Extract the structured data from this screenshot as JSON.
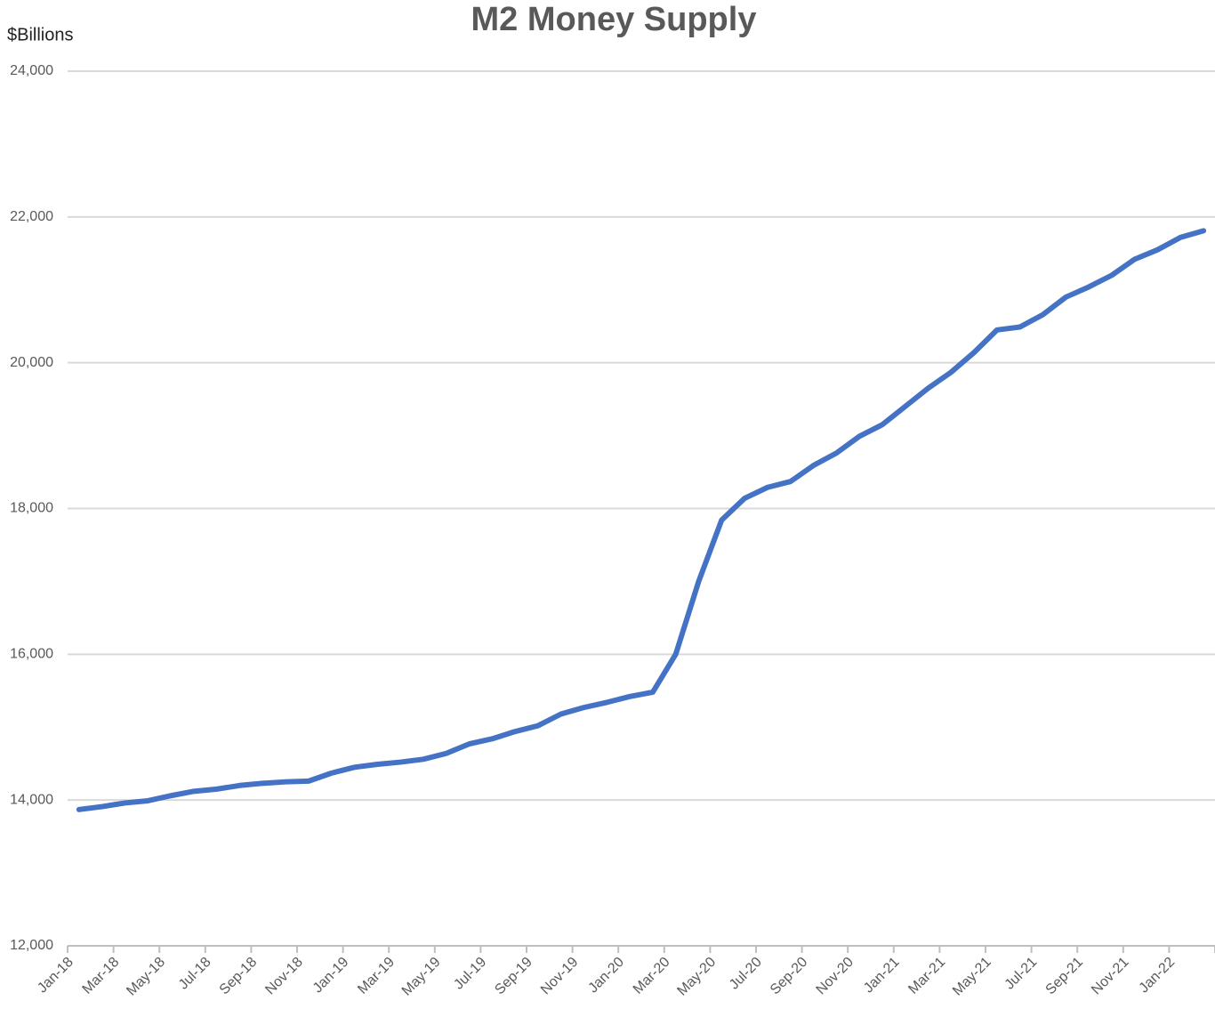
{
  "chart_data": {
    "type": "line",
    "title": "M2 Money Supply",
    "y_label": "$Billions",
    "categories": [
      "Jan-18",
      null,
      "Mar-18",
      null,
      "May-18",
      null,
      "Jul-18",
      null,
      "Sep-18",
      null,
      "Nov-18",
      null,
      "Jan-19",
      null,
      "Mar-19",
      null,
      "May-19",
      null,
      "Jul-19",
      null,
      "Sep-19",
      null,
      "Nov-19",
      null,
      "Jan-20",
      null,
      "Mar-20",
      null,
      "May-20",
      null,
      "Jul-20",
      null,
      "Sep-20",
      null,
      "Nov-20",
      null,
      "Jan-21",
      null,
      "Mar-21",
      null,
      "May-21",
      null,
      "Jul-21",
      null,
      "Sep-21",
      null,
      "Nov-21",
      null,
      "Jan-22",
      null
    ],
    "values": [
      13870,
      13910,
      13960,
      13990,
      14060,
      14120,
      14150,
      14200,
      14230,
      14250,
      14260,
      14370,
      14450,
      14490,
      14520,
      14560,
      14640,
      14770,
      14840,
      14940,
      15020,
      15180,
      15270,
      15340,
      15420,
      15480,
      16000,
      17000,
      17840,
      18140,
      18290,
      18370,
      18590,
      18760,
      18990,
      19150,
      19400,
      19650,
      19870,
      20140,
      20450,
      20490,
      20660,
      20900,
      21040,
      21200,
      21420,
      21550,
      21720,
      21810
    ],
    "color": "#4472c4",
    "ylim": [
      12000,
      24000
    ],
    "yticks": [
      {
        "value": 12000,
        "label": "12,000"
      },
      {
        "value": 14000,
        "label": "14,000"
      },
      {
        "value": 16000,
        "label": "16,000"
      },
      {
        "value": 18000,
        "label": "18,000"
      },
      {
        "value": 20000,
        "label": "20,000"
      },
      {
        "value": 22000,
        "label": "22,000"
      },
      {
        "value": 24000,
        "label": "24,000"
      }
    ],
    "grid": true
  }
}
